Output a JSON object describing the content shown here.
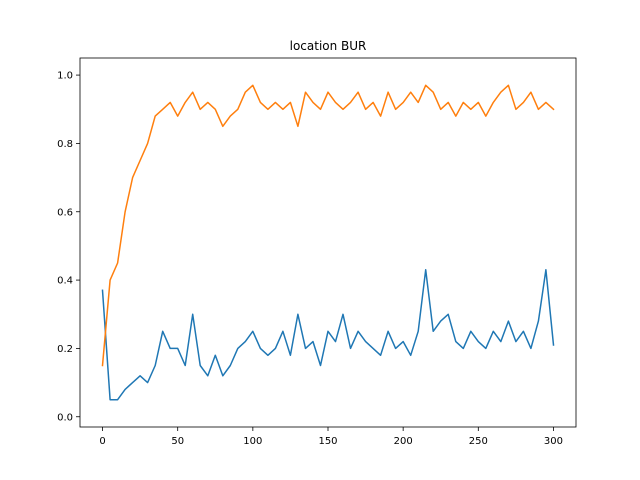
{
  "chart_data": {
    "type": "line",
    "title": "location BUR",
    "xlabel": "",
    "ylabel": "",
    "xlim": [
      -15,
      315
    ],
    "ylim": [
      -0.03,
      1.05
    ],
    "xticks": [
      0,
      50,
      100,
      150,
      200,
      250,
      300
    ],
    "yticks": [
      0.0,
      0.2,
      0.4,
      0.6,
      0.8,
      1.0
    ],
    "xtick_labels": [
      "0",
      "50",
      "100",
      "150",
      "200",
      "250",
      "300"
    ],
    "ytick_labels": [
      "0.0",
      "0.2",
      "0.4",
      "0.6",
      "0.8",
      "1.0"
    ],
    "grid": false,
    "legend": "none",
    "x": [
      0,
      5,
      10,
      15,
      20,
      25,
      30,
      35,
      40,
      45,
      50,
      55,
      60,
      65,
      70,
      75,
      80,
      85,
      90,
      95,
      100,
      105,
      110,
      115,
      120,
      125,
      130,
      135,
      140,
      145,
      150,
      155,
      160,
      165,
      170,
      175,
      180,
      185,
      190,
      195,
      200,
      205,
      210,
      215,
      220,
      225,
      230,
      235,
      240,
      245,
      250,
      255,
      260,
      265,
      270,
      275,
      280,
      285,
      290,
      295,
      300
    ],
    "series": [
      {
        "color": "#1f77b4",
        "values": [
          0.37,
          0.05,
          0.05,
          0.08,
          0.1,
          0.12,
          0.1,
          0.15,
          0.25,
          0.2,
          0.2,
          0.15,
          0.3,
          0.15,
          0.12,
          0.18,
          0.12,
          0.15,
          0.2,
          0.22,
          0.25,
          0.2,
          0.18,
          0.2,
          0.25,
          0.18,
          0.3,
          0.2,
          0.22,
          0.15,
          0.25,
          0.22,
          0.3,
          0.2,
          0.25,
          0.22,
          0.2,
          0.18,
          0.25,
          0.2,
          0.22,
          0.18,
          0.25,
          0.43,
          0.25,
          0.28,
          0.3,
          0.22,
          0.2,
          0.25,
          0.22,
          0.2,
          0.25,
          0.22,
          0.28,
          0.22,
          0.25,
          0.2,
          0.28,
          0.43,
          0.21
        ]
      },
      {
        "color": "#ff7f0e",
        "values": [
          0.15,
          0.4,
          0.45,
          0.6,
          0.7,
          0.75,
          0.8,
          0.88,
          0.9,
          0.92,
          0.88,
          0.92,
          0.95,
          0.9,
          0.92,
          0.9,
          0.85,
          0.88,
          0.9,
          0.95,
          0.97,
          0.92,
          0.9,
          0.92,
          0.9,
          0.92,
          0.85,
          0.95,
          0.92,
          0.9,
          0.95,
          0.92,
          0.9,
          0.92,
          0.95,
          0.9,
          0.92,
          0.88,
          0.95,
          0.9,
          0.92,
          0.95,
          0.92,
          0.97,
          0.95,
          0.9,
          0.92,
          0.88,
          0.92,
          0.9,
          0.92,
          0.88,
          0.92,
          0.95,
          0.97,
          0.9,
          0.92,
          0.95,
          0.9,
          0.92,
          0.9
        ]
      }
    ]
  }
}
